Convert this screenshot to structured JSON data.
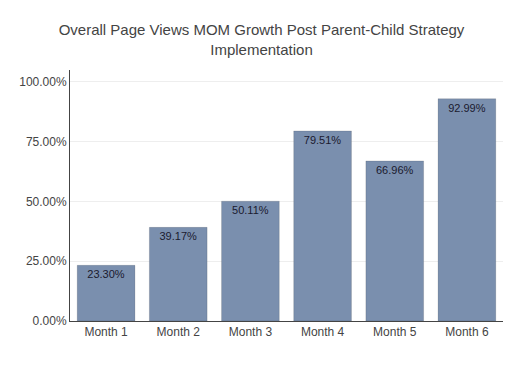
{
  "chart_data": {
    "type": "bar",
    "title": "Overall Page Views MOM Growth Post Parent-Child Strategy\nImplementation",
    "categories": [
      "Month 1",
      "Month 2",
      "Month 3",
      "Month 4",
      "Month 5",
      "Month 6"
    ],
    "values": [
      23.3,
      39.17,
      50.11,
      79.51,
      66.96,
      92.99
    ],
    "value_labels": [
      "23.30%",
      "39.17%",
      "50.11%",
      "79.51%",
      "66.96%",
      "92.99%"
    ],
    "data_labels": true,
    "color": "#7a8fae",
    "ylim": [
      0,
      105
    ],
    "yticks": [
      {
        "value": 0,
        "label": "0.00%"
      },
      {
        "value": 25,
        "label": "25.00%"
      },
      {
        "value": 50,
        "label": "50.00%"
      },
      {
        "value": 75,
        "label": "75.00%"
      },
      {
        "value": 100,
        "label": "100.00%"
      }
    ],
    "grid": true
  }
}
